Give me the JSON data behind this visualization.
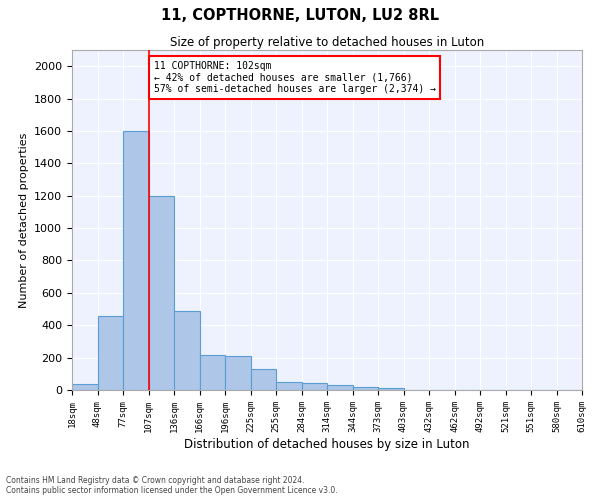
{
  "title": "11, COPTHORNE, LUTON, LU2 8RL",
  "subtitle": "Size of property relative to detached houses in Luton",
  "xlabel": "Distribution of detached houses by size in Luton",
  "ylabel": "Number of detached properties",
  "bar_values": [
    40,
    460,
    1600,
    1200,
    490,
    215,
    210,
    130,
    50,
    45,
    30,
    20,
    10,
    0,
    0,
    0,
    0,
    0,
    0,
    0
  ],
  "bin_labels": [
    "18sqm",
    "48sqm",
    "77sqm",
    "107sqm",
    "136sqm",
    "166sqm",
    "196sqm",
    "225sqm",
    "255sqm",
    "284sqm",
    "314sqm",
    "344sqm",
    "373sqm",
    "403sqm",
    "432sqm",
    "462sqm",
    "492sqm",
    "521sqm",
    "551sqm",
    "580sqm",
    "610sqm"
  ],
  "bar_color": "#aec6e8",
  "bar_edge_color": "#5a9fd4",
  "vline_x_bar": 2,
  "vline_color": "red",
  "annotation_text": "11 COPTHORNE: 102sqm\n← 42% of detached houses are smaller (1,766)\n57% of semi-detached houses are larger (2,374) →",
  "annotation_box_color": "white",
  "annotation_box_edge": "red",
  "ylim": [
    0,
    2100
  ],
  "yticks": [
    0,
    200,
    400,
    600,
    800,
    1000,
    1200,
    1400,
    1600,
    1800,
    2000
  ],
  "background_color": "#eef2ff",
  "grid_color": "white",
  "footer_line1": "Contains HM Land Registry data © Crown copyright and database right 2024.",
  "footer_line2": "Contains public sector information licensed under the Open Government Licence v3.0."
}
